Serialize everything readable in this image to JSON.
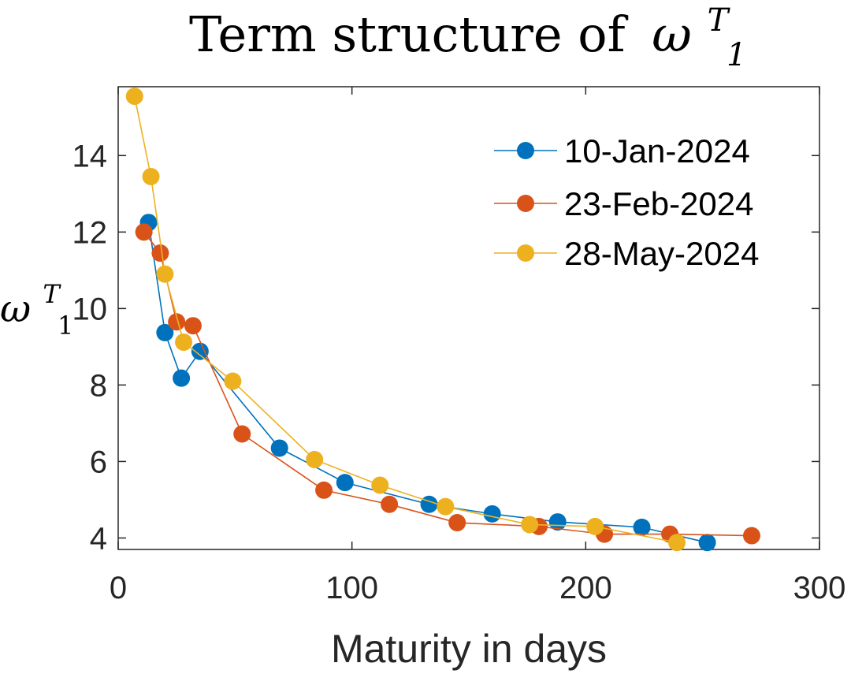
{
  "chart_data": {
    "type": "line",
    "title_text": "Term structure of",
    "title_symbol": "ω",
    "title_subscript": "1",
    "title_superscript": "T",
    "xlabel": "Maturity in days",
    "ylabel_symbol": "ω",
    "ylabel_subscript": "1",
    "ylabel_superscript": "T",
    "xlim": [
      0,
      300
    ],
    "ylim": [
      3.7,
      15.8
    ],
    "xticks": [
      0,
      100,
      200,
      300
    ],
    "xtick_labels": [
      "0",
      "100",
      "200",
      "300"
    ],
    "yticks": [
      4,
      6,
      8,
      10,
      12,
      14
    ],
    "ytick_labels": [
      "4",
      "6",
      "8",
      "10",
      "12",
      "14"
    ],
    "grid": false,
    "legend_position": "top-right",
    "series": [
      {
        "name": "10-Jan-2024",
        "color": "#0072BD",
        "x": [
          13,
          20,
          27,
          35,
          69,
          97,
          133,
          160,
          188,
          224,
          252
        ],
        "y": [
          12.25,
          9.37,
          8.18,
          8.88,
          6.35,
          5.45,
          4.88,
          4.63,
          4.42,
          4.28,
          3.88
        ]
      },
      {
        "name": "23-Feb-2024",
        "color": "#D95319",
        "x": [
          11,
          18,
          25,
          32,
          53,
          88,
          116,
          145,
          180,
          208,
          236,
          271
        ],
        "y": [
          12.0,
          11.45,
          9.65,
          9.55,
          6.72,
          5.25,
          4.88,
          4.4,
          4.3,
          4.1,
          4.1,
          4.06
        ]
      },
      {
        "name": "28-May-2024",
        "color": "#EDB120",
        "x": [
          7,
          14,
          20,
          28,
          49,
          84,
          112,
          140,
          176,
          204,
          239
        ],
        "y": [
          15.55,
          13.45,
          10.9,
          9.12,
          8.1,
          6.05,
          5.38,
          4.82,
          4.35,
          4.3,
          3.88
        ]
      }
    ]
  }
}
